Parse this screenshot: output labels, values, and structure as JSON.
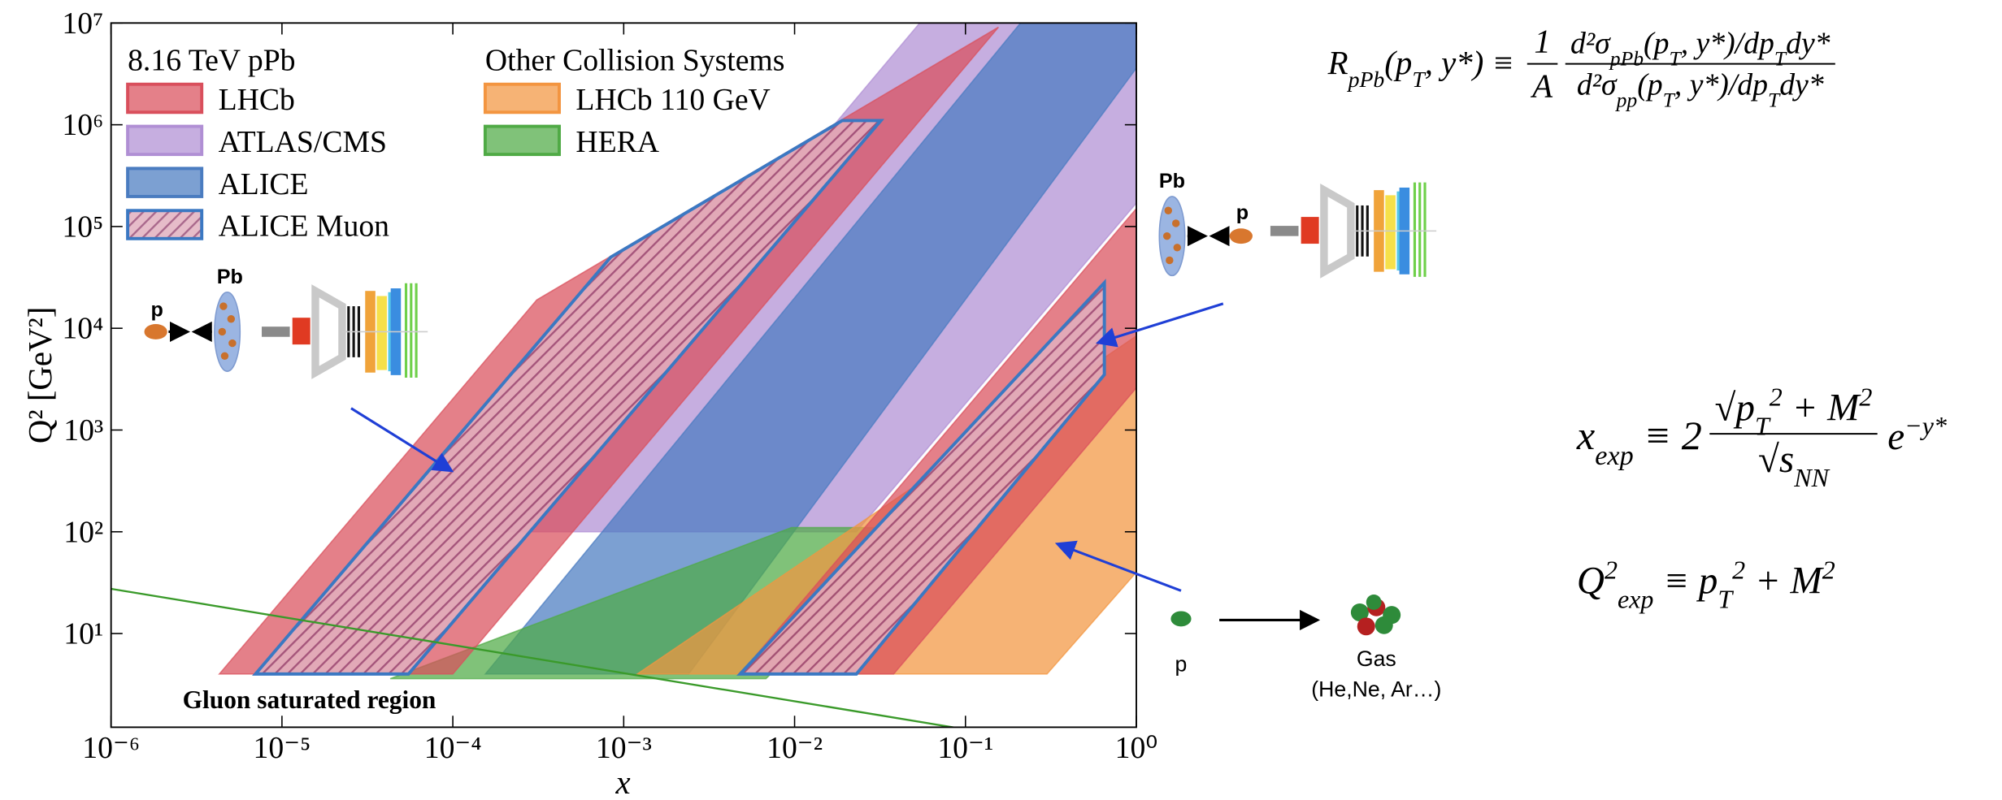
{
  "chart_data": {
    "type": "area",
    "xscale": "log",
    "yscale": "log",
    "xlabel": "x",
    "ylabel": "Q² [GeV²]",
    "xlim": [
      1e-06,
      1
    ],
    "ylim": [
      1.2,
      10000000.0
    ],
    "xticks": [
      {
        "value": 1e-06,
        "label": "10⁻⁶"
      },
      {
        "value": 1e-05,
        "label": "10⁻⁵"
      },
      {
        "value": 0.0001,
        "label": "10⁻⁴"
      },
      {
        "value": 0.001,
        "label": "10⁻³"
      },
      {
        "value": 0.01,
        "label": "10⁻²"
      },
      {
        "value": 0.1,
        "label": "10⁻¹"
      },
      {
        "value": 1,
        "label": "10⁰"
      }
    ],
    "yticks": [
      {
        "value": 10,
        "label": "10¹"
      },
      {
        "value": 100,
        "label": "10²"
      },
      {
        "value": 1000,
        "label": "10³"
      },
      {
        "value": 10000,
        "label": "10⁴"
      },
      {
        "value": 100000,
        "label": "10⁵"
      },
      {
        "value": 1000000,
        "label": "10⁶"
      },
      {
        "value": 10000000,
        "label": "10⁷"
      }
    ],
    "alpha": 0.72,
    "legend_groups": [
      "8.16 TeV pPb",
      "Other Collision Systems"
    ],
    "series": [
      {
        "name": "ATLAS/CMS",
        "color": "#b08fd4",
        "group": 0,
        "polygons": [
          {
            "x": [
              0.00017,
              0.054,
              1,
              1,
              0.023
            ],
            "y": [
              100,
              10000000.0,
              10000000.0,
              170000,
              100
            ]
          }
        ]
      },
      {
        "name": "ALICE",
        "color": "#4a7cc0",
        "group": 0,
        "polygons": [
          {
            "x": [
              0.000155,
              0.21,
              1,
              1,
              0.0024
            ],
            "y": [
              4,
              10000000.0,
              10000000.0,
              3600000,
              4
            ]
          }
        ]
      },
      {
        "name": "HERA",
        "color": "#4faa45",
        "group": 1,
        "polygons": [
          {
            "x": [
              4.3e-05,
              0.0096,
              0.054,
              0.0068
            ],
            "y": [
              3.6,
              110,
              110,
              3.6
            ]
          }
        ]
      },
      {
        "name": "LHCb 110 GeV",
        "color": "#f39540",
        "group": 1,
        "polygons": [
          {
            "x": [
              0.0012,
              1,
              1,
              0.3
            ],
            "y": [
              4,
              8400,
              40,
              4
            ]
          }
        ]
      },
      {
        "name": "LHCb",
        "color": "#d94f5c",
        "group": 0,
        "polygons": [
          {
            "x": [
              4.3e-06,
              0.00031,
              0.156,
              0.0001
            ],
            "y": [
              4,
              19000,
              9100000,
              4
            ]
          },
          {
            "x": [
              0.0048,
              1,
              1,
              0.038
            ],
            "y": [
              4,
              150000,
              2600,
              4
            ]
          }
        ]
      },
      {
        "name": "ALICE Muon",
        "color": "#9a4d78",
        "edge_color": "#3b78c2",
        "hatch": true,
        "group": 0,
        "polygons": [
          {
            "x": [
              7e-06,
              0.00084,
              0.019,
              0.032,
              5.5e-05
            ],
            "y": [
              4,
              50000,
              1100000,
              1100000,
              4
            ]
          },
          {
            "x": [
              0.0048,
              0.65,
              0.65,
              0.023
            ],
            "y": [
              4,
              28000,
              3500,
              4
            ]
          }
        ]
      }
    ],
    "annotations": [
      {
        "text": "Gluon saturated region",
        "color": "#3a9a2a",
        "x": [
          1e-06,
          0.098
        ],
        "y": [
          27.5,
          1.15
        ]
      }
    ]
  },
  "diagrams": {
    "left": {
      "p": "p",
      "pb": "Pb"
    },
    "right": {
      "pb": "Pb",
      "p": "p"
    },
    "gas": {
      "p": "p",
      "gas": "Gas",
      "elements": "(He,Ne, Ar…)"
    }
  },
  "equations": {
    "ratio": {
      "lhs": [
        "R",
        {
          "sub": "pPb"
        },
        "(p",
        {
          "sub": "T"
        },
        ", y*) ≡"
      ],
      "coef_num": [
        "1"
      ],
      "coef_den": [
        "A"
      ],
      "num": [
        "d²σ",
        {
          "sub": "pPb"
        },
        "(p",
        {
          "sub": "T"
        },
        ", y*)/dp",
        {
          "sub": "T"
        },
        "dy*"
      ],
      "den": [
        "d²σ",
        {
          "sub": "pp"
        },
        "(p",
        {
          "sub": "T"
        },
        ", y*)/dp",
        {
          "sub": "T"
        },
        "dy*"
      ]
    },
    "xexp": {
      "lhs": [
        "x",
        {
          "sub": "exp"
        },
        " ≡ 2"
      ],
      "num": [
        "√p",
        {
          "sub": "T"
        },
        {
          "sup": "2"
        },
        " + M",
        {
          "sup": "2"
        }
      ],
      "den": [
        "√s",
        {
          "sub": "NN"
        }
      ],
      "tail": [
        "e",
        {
          "sup": "−y*"
        }
      ]
    },
    "qexp": {
      "lhs": [
        "Q",
        {
          "sup": "2"
        },
        {
          "sub": "exp"
        },
        " ≡ p",
        {
          "sub": "T"
        },
        {
          "sup": "2"
        },
        " + M",
        {
          "sup": "2"
        }
      ]
    }
  }
}
